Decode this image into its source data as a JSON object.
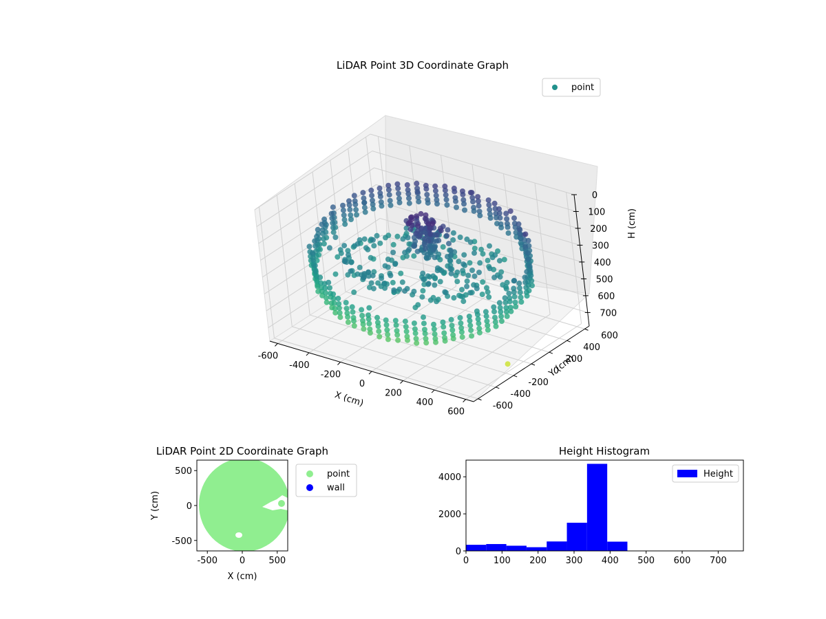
{
  "chart_data": [
    {
      "type": "scatter",
      "subtype": "3d",
      "title": "LiDAR Point 3D Coordinate Graph",
      "xlabel": "X (cm)",
      "ylabel": "Y (cm)",
      "zlabel": "H (cm)",
      "xlim": [
        -650,
        650
      ],
      "ylim": [
        -650,
        650
      ],
      "zlim": [
        0,
        780
      ],
      "z_inverted": true,
      "x_ticks": [
        -600,
        -400,
        -200,
        0,
        200,
        400,
        600
      ],
      "y_ticks": [
        -600,
        -400,
        -200,
        0,
        200,
        400,
        600
      ],
      "z_ticks": [
        0,
        100,
        200,
        300,
        400,
        500,
        600,
        700
      ],
      "colormap": "viridis",
      "legend": {
        "position": "top-right",
        "entries": [
          {
            "label": "point",
            "color": "#21918c"
          }
        ]
      },
      "grid": true,
      "shape": "ring-shaped room of points, outer wall radius about 600, floor ring near height 350, dense column near center at height 100-300",
      "points_sample": [
        {
          "x": 0,
          "y": 600,
          "h": 150
        },
        {
          "x": 300,
          "y": 520,
          "h": 150
        },
        {
          "x": 520,
          "y": 300,
          "h": 150
        },
        {
          "x": 600,
          "y": 0,
          "h": 300
        },
        {
          "x": 520,
          "y": -300,
          "h": 400
        },
        {
          "x": 300,
          "y": -520,
          "h": 420
        },
        {
          "x": 0,
          "y": -600,
          "h": 420
        },
        {
          "x": -300,
          "y": -520,
          "h": 380
        },
        {
          "x": -520,
          "y": -300,
          "h": 350
        },
        {
          "x": -600,
          "y": 0,
          "h": 300
        },
        {
          "x": -520,
          "y": 300,
          "h": 250
        },
        {
          "x": -300,
          "y": 520,
          "h": 200
        },
        {
          "x": 0,
          "y": 0,
          "h": 200
        },
        {
          "x": 60,
          "y": 80,
          "h": 130
        },
        {
          "x": -50,
          "y": 40,
          "h": 260
        },
        {
          "x": 620,
          "y": -200,
          "h": 720
        }
      ]
    },
    {
      "type": "scatter",
      "title": "LiDAR Point 2D Coordinate Graph",
      "xlabel": "X (cm)",
      "ylabel": "Y (cm)",
      "xlim": [
        -650,
        650
      ],
      "ylim": [
        -650,
        650
      ],
      "x_ticks": [
        -500,
        0,
        500
      ],
      "y_ticks": [
        -500,
        0,
        500
      ],
      "legend": {
        "position": "outside-right",
        "entries": [
          {
            "label": "point",
            "color": "#90ee90"
          },
          {
            "label": "wall",
            "color": "#0000ff"
          }
        ]
      },
      "series": [
        {
          "name": "point",
          "color": "#90ee90",
          "shape": "filled disk",
          "center": [
            0,
            0
          ],
          "radius": 620
        }
      ]
    },
    {
      "type": "bar",
      "subtype": "histogram",
      "title": "Height Histogram",
      "xlim": [
        0,
        770
      ],
      "ylim": [
        0,
        4900
      ],
      "x_ticks": [
        0,
        100,
        200,
        300,
        400,
        500,
        600,
        700
      ],
      "y_ticks": [
        0,
        2000,
        4000
      ],
      "color": "#0000ff",
      "legend": {
        "position": "top-right",
        "entries": [
          {
            "label": "Height",
            "color": "#0000ff"
          }
        ]
      },
      "bin_edges": [
        0,
        56,
        112,
        168,
        224,
        280,
        336,
        392,
        448,
        504,
        560,
        616,
        672,
        728
      ],
      "counts": [
        330,
        370,
        280,
        200,
        510,
        1520,
        4700,
        500,
        0,
        0,
        0,
        0,
        0
      ]
    }
  ]
}
